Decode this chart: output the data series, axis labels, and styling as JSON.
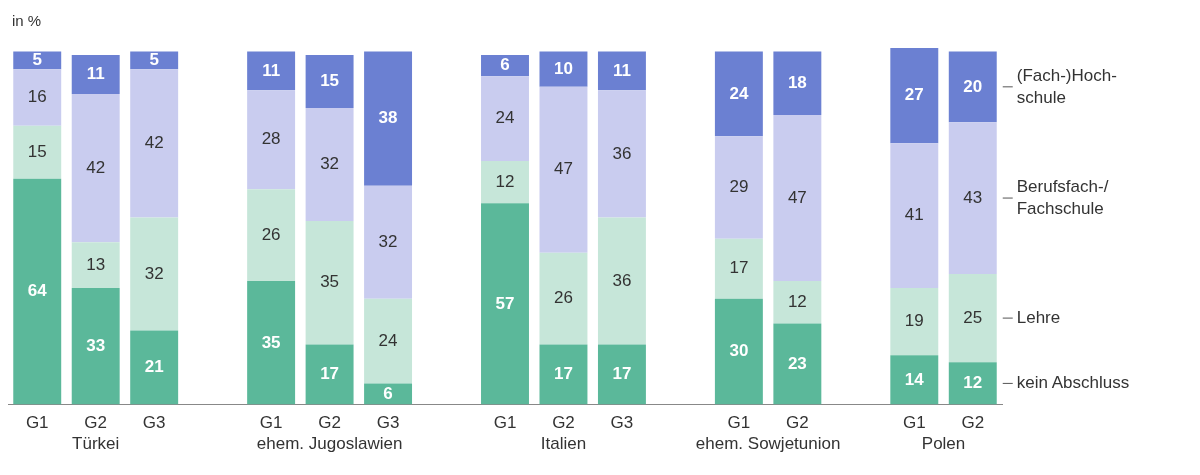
{
  "chart_data": {
    "type": "bar",
    "stacked": true,
    "data_labels": true,
    "legend": "right",
    "grid": false,
    "ylabel": "in %",
    "categories": [
      "G1",
      "G2",
      "G3",
      null,
      "G1",
      "G2",
      "G3",
      null,
      "G1",
      "G2",
      "G3",
      null,
      "G1",
      "G2",
      null,
      "G1",
      "G2"
    ],
    "annotations": [
      "Türkei",
      "ehem. Jugoslawien",
      "Italien",
      "ehem. Sowjetunion",
      "Polen"
    ],
    "series": [
      {
        "name": "kein Abschluss",
        "color": "#5bb89a",
        "values": [
          64,
          33,
          21,
          null,
          35,
          17,
          6,
          null,
          57,
          17,
          17,
          null,
          30,
          23,
          null,
          14,
          12
        ]
      },
      {
        "name": "Lehre",
        "color": "#c6e6d9",
        "values": [
          15,
          13,
          32,
          null,
          26,
          35,
          24,
          null,
          12,
          26,
          36,
          null,
          17,
          12,
          null,
          19,
          25
        ]
      },
      {
        "name": "Berufsfach-/\nFachschule",
        "color": "#c9ccef",
        "values": [
          16,
          42,
          42,
          null,
          28,
          32,
          32,
          null,
          24,
          47,
          36,
          null,
          29,
          47,
          null,
          41,
          43
        ]
      },
      {
        "name": "(Fach-)Hoch-\nschule",
        "color": "#6b80d2",
        "values": [
          5,
          11,
          5,
          null,
          11,
          15,
          38,
          null,
          6,
          10,
          11,
          null,
          24,
          18,
          null,
          27,
          20
        ]
      }
    ]
  }
}
